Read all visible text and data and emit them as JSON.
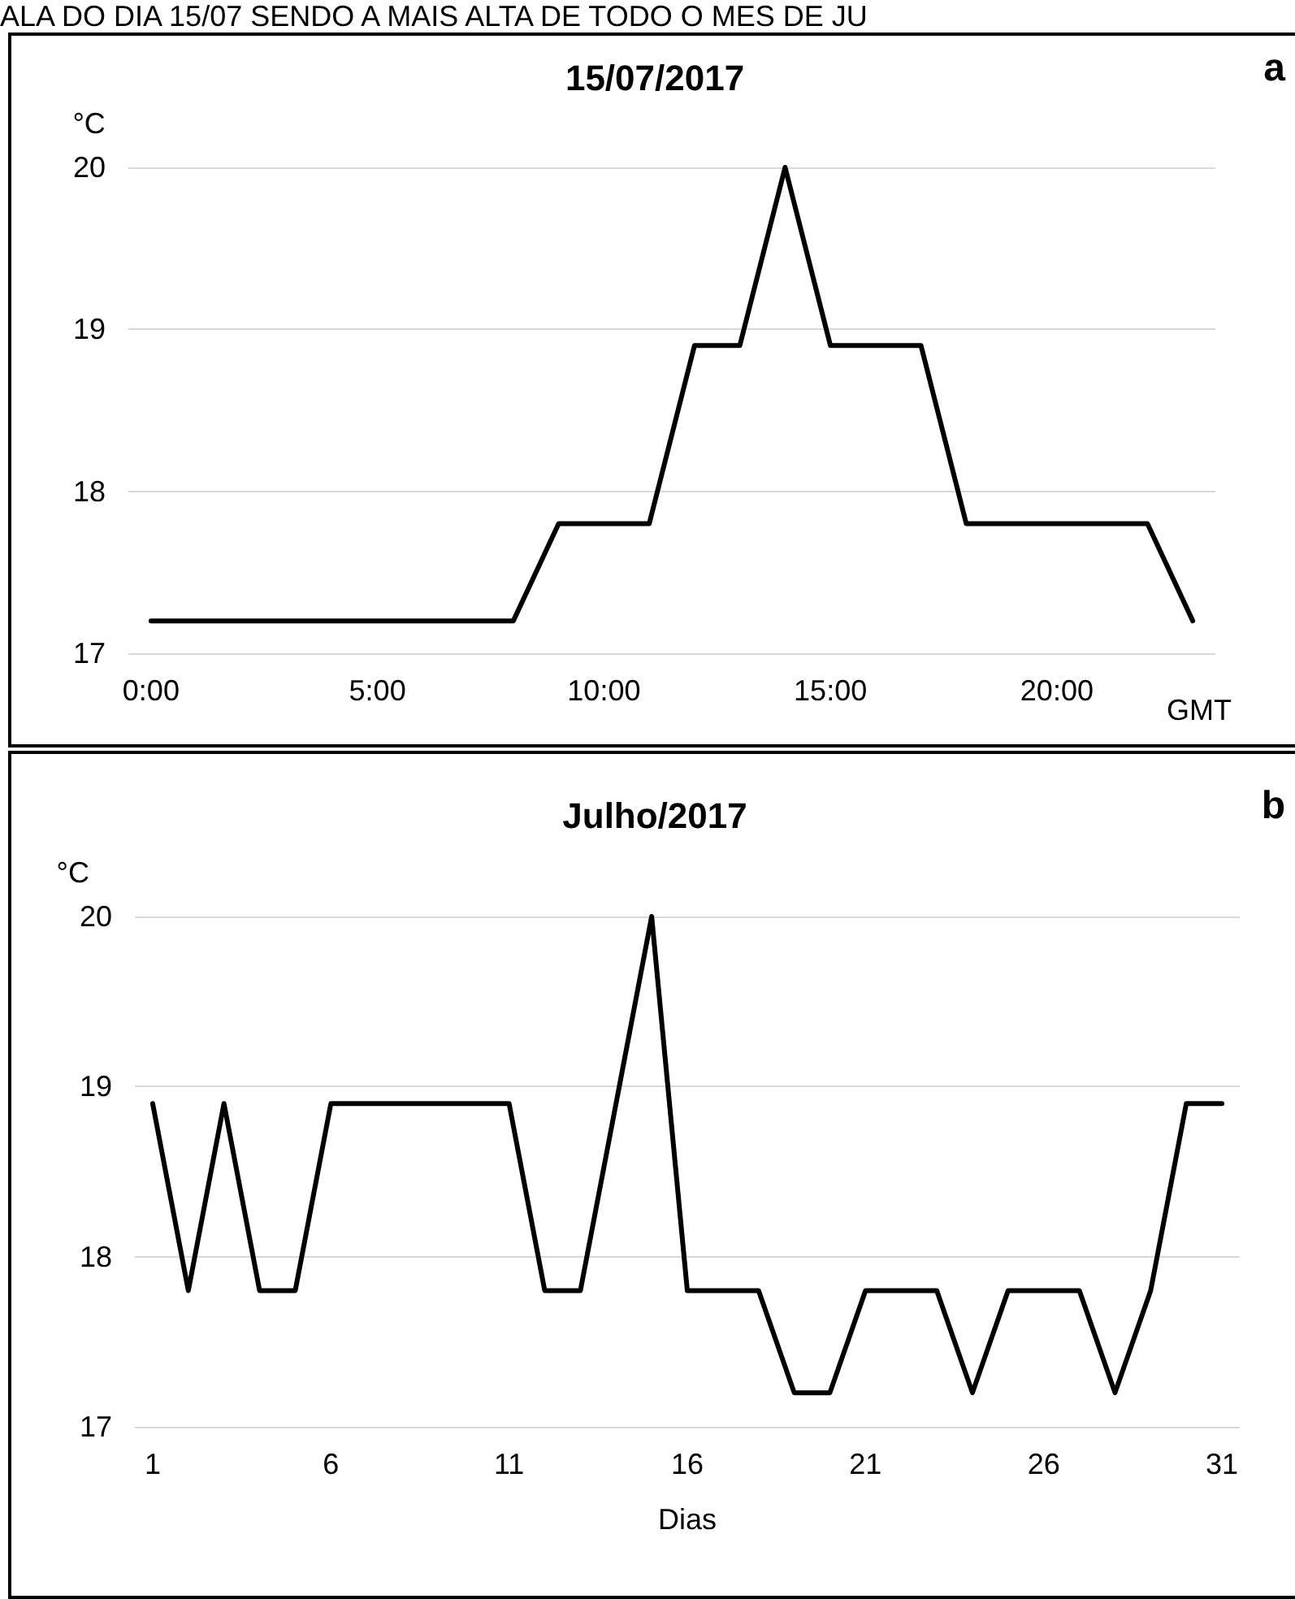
{
  "chart_data": [
    {
      "type": "line",
      "title": "15/07/2017",
      "xlabel": "GMT",
      "ylabel": "°C",
      "annotations": [
        "ALA DO DIA 15/07 SENDO A MAIS ALTA DE TODO O MES DE JU",
        "a"
      ],
      "color": "#000000",
      "grid": "y",
      "x": [
        0,
        1,
        2,
        3,
        4,
        5,
        6,
        7,
        8,
        9,
        10,
        11,
        12,
        13,
        14,
        15,
        16,
        17,
        18,
        19,
        20,
        21,
        22,
        23
      ],
      "values": [
        17.2,
        17.2,
        17.2,
        17.2,
        17.2,
        17.2,
        17.2,
        17.2,
        17.2,
        17.8,
        17.8,
        17.8,
        18.9,
        18.9,
        20,
        18.9,
        18.9,
        18.9,
        17.8,
        17.8,
        17.8,
        17.8,
        17.8,
        17.2
      ],
      "xlim": [
        -0.5,
        23.5
      ],
      "xticks": [
        {
          "value": 0,
          "label": "0:00"
        },
        {
          "value": 5,
          "label": "5:00"
        },
        {
          "value": 10,
          "label": "10:00"
        },
        {
          "value": 15,
          "label": "15:00"
        },
        {
          "value": 20,
          "label": "20:00"
        }
      ],
      "ylim": [
        17,
        20
      ],
      "yticks": [
        17,
        18,
        19,
        20
      ]
    },
    {
      "type": "line",
      "title": "Julho/2017",
      "xlabel": "Dias",
      "ylabel": "°C",
      "annotations": [
        "b"
      ],
      "color": "#000000",
      "grid": "y",
      "x": [
        1,
        2,
        3,
        4,
        5,
        6,
        7,
        8,
        9,
        10,
        11,
        12,
        13,
        14,
        15,
        16,
        17,
        18,
        19,
        20,
        21,
        22,
        23,
        24,
        25,
        26,
        27,
        28,
        29,
        30,
        31
      ],
      "values": [
        18.9,
        17.8,
        18.9,
        17.8,
        17.8,
        18.9,
        18.9,
        18.9,
        18.9,
        18.9,
        18.9,
        17.8,
        17.8,
        18.9,
        20,
        17.8,
        17.8,
        17.8,
        17.2,
        17.2,
        17.8,
        17.8,
        17.8,
        17.2,
        17.8,
        17.8,
        17.8,
        17.2,
        17.8,
        18.9,
        18.9
      ],
      "xlim": [
        0.5,
        31.5
      ],
      "xticks": [
        1,
        6,
        11,
        16,
        21,
        26,
        31
      ],
      "ylim": [
        17,
        20
      ],
      "yticks": [
        17,
        18,
        19,
        20
      ]
    }
  ]
}
